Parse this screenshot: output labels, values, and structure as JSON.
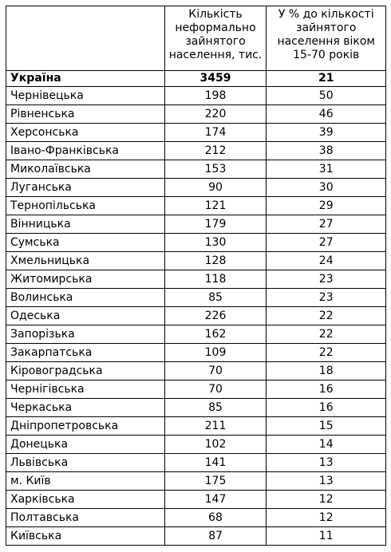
{
  "header": {
    "col1": "",
    "col2": "Кількість неформально зайнятого населення, тис.",
    "col3": "У % до кількості зайнятого населення віком 15-70 років"
  },
  "total": {
    "name": "Україна",
    "count": "3459",
    "percent": "21"
  },
  "rows": [
    {
      "name": "Чернівецька",
      "count": "198",
      "percent": "50"
    },
    {
      "name": "Рівненська",
      "count": "220",
      "percent": "46"
    },
    {
      "name": "Херсонська",
      "count": "174",
      "percent": "39"
    },
    {
      "name": "Івано-Франківська",
      "count": "212",
      "percent": "38"
    },
    {
      "name": "Миколаївська",
      "count": "153",
      "percent": "31"
    },
    {
      "name": "Луганська",
      "count": "90",
      "percent": "30"
    },
    {
      "name": "Тернопільська",
      "count": "121",
      "percent": "29"
    },
    {
      "name": "Вінницька",
      "count": "179",
      "percent": "27"
    },
    {
      "name": "Сумська",
      "count": "130",
      "percent": "27"
    },
    {
      "name": "Хмельницька",
      "count": "128",
      "percent": "24"
    },
    {
      "name": "Житомирська",
      "count": "118",
      "percent": "23"
    },
    {
      "name": "Волинська",
      "count": "85",
      "percent": "23"
    },
    {
      "name": "Одеська",
      "count": "226",
      "percent": "22"
    },
    {
      "name": "Запорізька",
      "count": "162",
      "percent": "22"
    },
    {
      "name": "Закарпатська",
      "count": "109",
      "percent": "22"
    },
    {
      "name": "Кіровоградська",
      "count": "70",
      "percent": "18"
    },
    {
      "name": "Чернігівська",
      "count": "70",
      "percent": "16"
    },
    {
      "name": "Черкаська",
      "count": "85",
      "percent": "16"
    },
    {
      "name": "Дніпропетровська",
      "count": "211",
      "percent": "15"
    },
    {
      "name": "Донецька",
      "count": "102",
      "percent": "14"
    },
    {
      "name": "Львівська",
      "count": "141",
      "percent": "13"
    },
    {
      "name": "м. Київ",
      "count": "175",
      "percent": "13"
    },
    {
      "name": "Харківська",
      "count": "147",
      "percent": "12"
    },
    {
      "name": "Полтавська",
      "count": "68",
      "percent": "12"
    },
    {
      "name": "Київська",
      "count": "87",
      "percent": "11"
    }
  ]
}
